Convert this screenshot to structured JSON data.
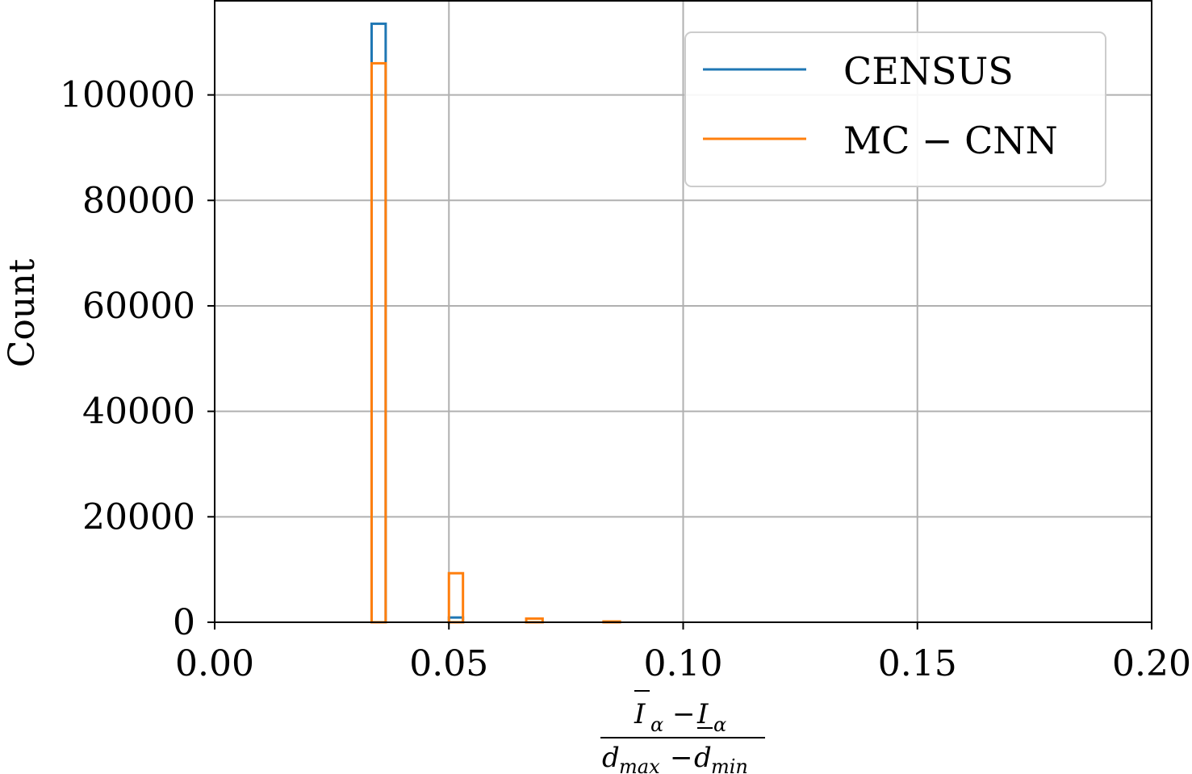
{
  "chart_data": {
    "type": "histogram",
    "ylabel": "Count",
    "xlabel": {
      "numerator": [
        "I",
        "α",
        "−",
        "I",
        "α"
      ],
      "denominator": [
        "d",
        "max",
        "−",
        "d",
        "min"
      ]
    },
    "xlim": [
      0.0,
      0.2
    ],
    "ylim": [
      0,
      118000
    ],
    "xticks": [
      "0.00",
      "0.05",
      "0.10",
      "0.15",
      "0.20"
    ],
    "xtick_values": [
      0.0,
      0.05,
      0.1,
      0.15,
      0.2
    ],
    "yticks": [
      "0",
      "20000",
      "40000",
      "60000",
      "80000",
      "100000"
    ],
    "ytick_values": [
      0,
      20000,
      40000,
      60000,
      80000,
      100000
    ],
    "grid": true,
    "legend_position": "top-right",
    "series": [
      {
        "name": "CENSUS",
        "color": "#1f77b4",
        "bins": [
          {
            "x0": 0.0335,
            "x1": 0.0365,
            "count": 113500
          },
          {
            "x0": 0.05,
            "x1": 0.053,
            "count": 900
          }
        ]
      },
      {
        "name": "MC − CNN",
        "color": "#ff7f0e",
        "bins": [
          {
            "x0": 0.0335,
            "x1": 0.0365,
            "count": 106000
          },
          {
            "x0": 0.05,
            "x1": 0.053,
            "count": 9300
          },
          {
            "x0": 0.0665,
            "x1": 0.07,
            "count": 700
          },
          {
            "x0": 0.083,
            "x1": 0.0865,
            "count": 150
          }
        ]
      }
    ]
  }
}
